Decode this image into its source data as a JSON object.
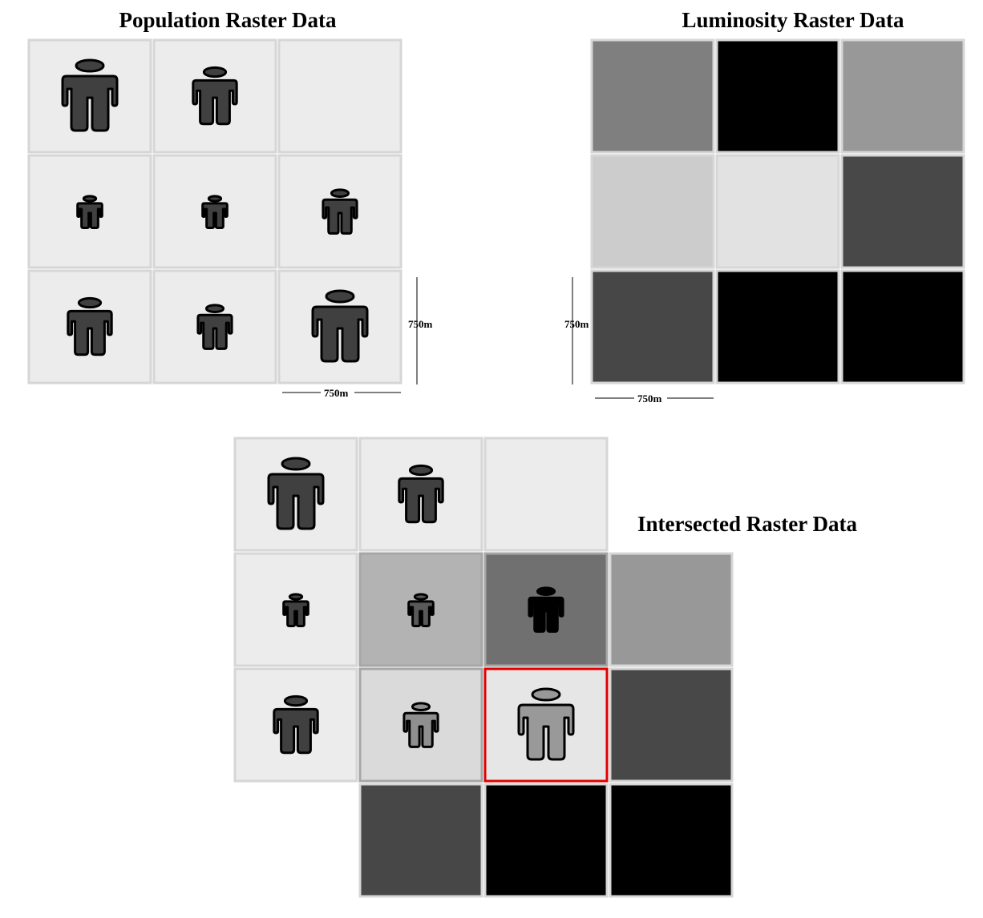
{
  "titles": {
    "population": "Population Raster Data",
    "luminosity": "Luminosity Raster Data",
    "intersected": "Intersected Raster Data"
  },
  "scale_labels": {
    "population_vertical": "750m",
    "population_horizontal": "750m",
    "luminosity_vertical": "750m",
    "luminosity_horizontal": "750m"
  },
  "colors": {
    "cell_background": "#ececec",
    "cell_border": "#d6d6d6",
    "person_fill": "#404040",
    "person_stroke": "#000000",
    "highlight_border": "#e00000"
  },
  "population_grid": [
    [
      4,
      3,
      0
    ],
    [
      1,
      1,
      2
    ],
    [
      3,
      2,
      4
    ]
  ],
  "luminosity_grid": [
    [
      "#7f7f7f",
      "#000000",
      "#989898"
    ],
    [
      "#cccccc",
      "#e2e2e2",
      "#484848"
    ],
    [
      "#474747",
      "#000000",
      "#000000"
    ]
  ],
  "intersected": {
    "overlap_fills": [
      [
        "#b3b3b3",
        "#707070"
      ],
      [
        "#dadada",
        "#e6e6e6"
      ]
    ],
    "overlap_person_fills": [
      [
        "#595959",
        "#000000"
      ],
      [
        "#8f8f8f",
        "#999999"
      ]
    ],
    "highlighted_cell": [
      1,
      1
    ]
  }
}
